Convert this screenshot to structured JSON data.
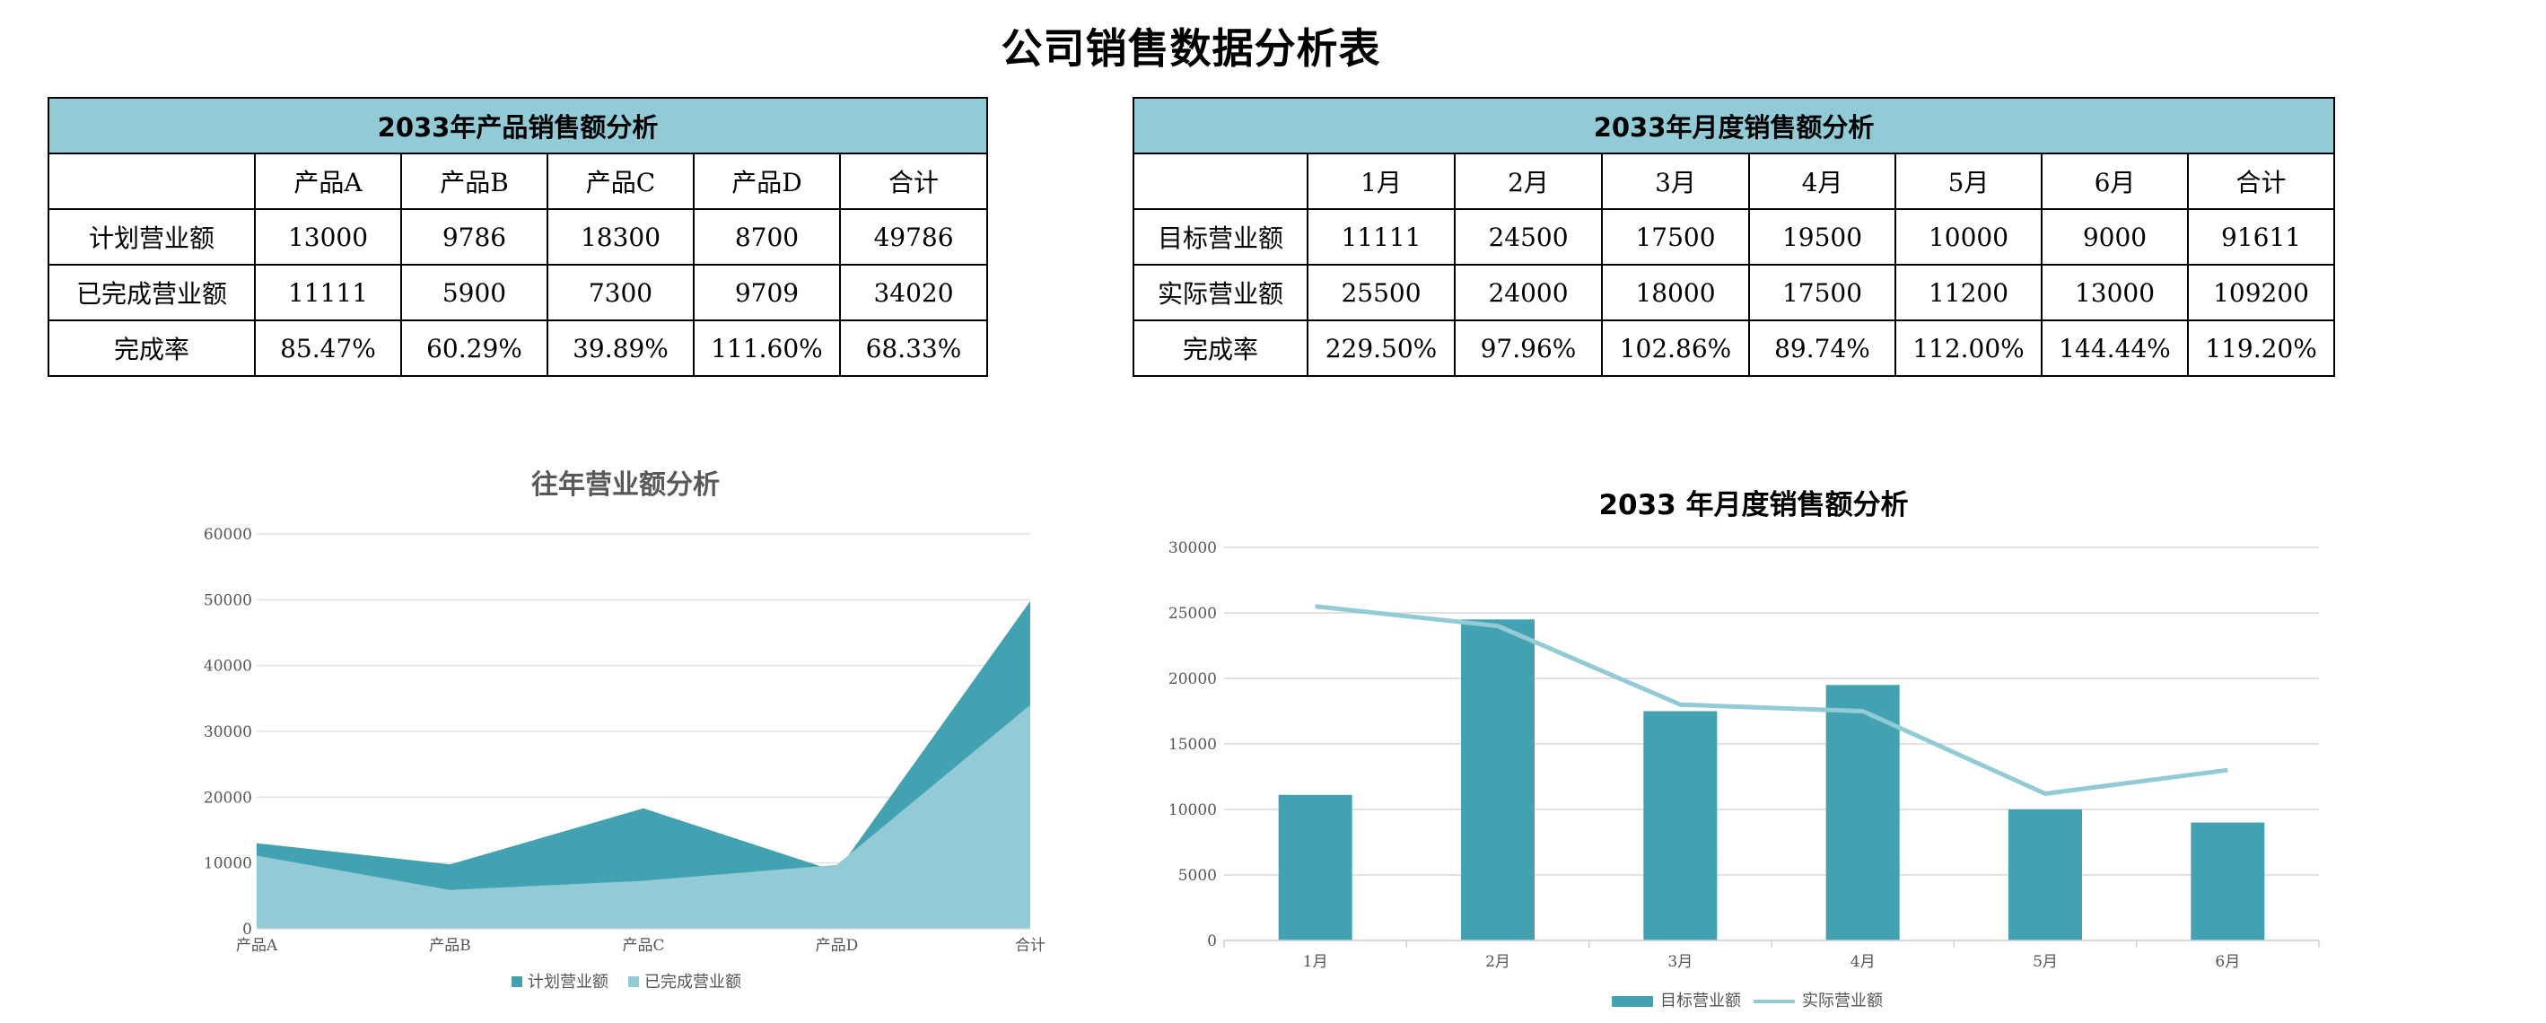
{
  "page": {
    "title": "公司销售数据分析表"
  },
  "products_table": {
    "title": "2033年产品销售额分析",
    "headers": [
      "",
      "产品A",
      "产品B",
      "产品C",
      "产品D",
      "合计"
    ],
    "rows": [
      [
        "计划营业额",
        "13000",
        "9786",
        "18300",
        "8700",
        "49786"
      ],
      [
        "已完成营业额",
        "11111",
        "5900",
        "7300",
        "9709",
        "34020"
      ],
      [
        "完成率",
        "85.47%",
        "60.29%",
        "39.89%",
        "111.60%",
        "68.33%"
      ]
    ]
  },
  "months_table": {
    "title": "2033年月度销售额分析",
    "headers": [
      "",
      "1月",
      "2月",
      "3月",
      "4月",
      "5月",
      "6月",
      "合计"
    ],
    "rows": [
      [
        "目标营业额",
        "11111",
        "24500",
        "17500",
        "19500",
        "10000",
        "9000",
        "91611"
      ],
      [
        "实际营业额",
        "25500",
        "24000",
        "18000",
        "17500",
        "11200",
        "13000",
        "109200"
      ],
      [
        "完成率",
        "229.50%",
        "97.96%",
        "102.86%",
        "89.74%",
        "112.00%",
        "144.44%",
        "119.20%"
      ]
    ]
  },
  "chart_data": [
    {
      "type": "area",
      "title": "往年营业额分析",
      "categories": [
        "产品A",
        "产品B",
        "产品C",
        "产品D",
        "合计"
      ],
      "series": [
        {
          "name": "计划营业额",
          "values": [
            13000,
            9786,
            18300,
            8700,
            49786
          ],
          "color": "#43a2b2"
        },
        {
          "name": "已完成营业额",
          "values": [
            11111,
            5900,
            7300,
            9709,
            34020
          ],
          "color": "#92cad5"
        }
      ],
      "ylim": [
        0,
        60000
      ],
      "yticks": [
        0,
        10000,
        20000,
        30000,
        40000,
        50000,
        60000
      ],
      "grid": true,
      "legend": "bottom"
    },
    {
      "type": "bar",
      "title": "2033 年月度销售额分析",
      "categories": [
        "1月",
        "2月",
        "3月",
        "4月",
        "5月",
        "6月"
      ],
      "series": [
        {
          "name": "目标营业额",
          "type": "bar",
          "values": [
            11111,
            24500,
            17500,
            19500,
            10000,
            9000
          ],
          "color": "#43a2b2"
        },
        {
          "name": "实际营业额",
          "type": "line",
          "values": [
            25500,
            24000,
            18000,
            17500,
            11200,
            13000
          ],
          "color": "#92cad5"
        }
      ],
      "ylim": [
        0,
        30000
      ],
      "yticks": [
        0,
        5000,
        10000,
        15000,
        20000,
        25000,
        30000
      ],
      "grid": true,
      "legend": "bottom"
    }
  ]
}
